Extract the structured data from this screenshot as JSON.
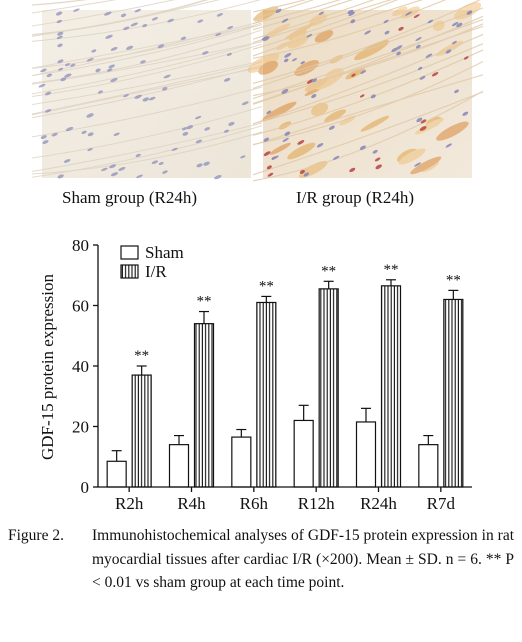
{
  "panels": [
    {
      "caption": "Sham group (R24h)"
    },
    {
      "caption": "I/R group (R24h)"
    }
  ],
  "chart_data": {
    "type": "bar",
    "ylabel": "GDF-15 protein expression",
    "xlabel": "",
    "ylim": [
      0,
      80
    ],
    "yticks": [
      0,
      20,
      40,
      60,
      80
    ],
    "categories": [
      "R2h",
      "R4h",
      "R6h",
      "R12h",
      "R24h",
      "R7d"
    ],
    "series": [
      {
        "name": "Sham",
        "values": [
          8.5,
          14,
          16.5,
          22,
          21.5,
          14
        ],
        "errors": [
          3.5,
          3,
          2.5,
          5,
          4.5,
          3
        ],
        "fill": "#ffffff"
      },
      {
        "name": "I/R",
        "values": [
          37,
          54,
          61,
          65.5,
          66.5,
          62
        ],
        "errors": [
          3,
          4,
          2,
          2.5,
          2,
          3
        ],
        "fill": "vertical-hatch"
      }
    ],
    "annotations": [
      "**",
      "**",
      "**",
      "**",
      "**",
      "**"
    ],
    "legend": "top-left"
  },
  "figure_caption": {
    "label": "Figure 2.",
    "text": "Immunohistochemical analyses of GDF-15 protein expression in rat myocardial tissues after cardiac I/R (×200). Mean ± SD. n = 6. ** P < 0.01 vs sham group at each time point."
  }
}
